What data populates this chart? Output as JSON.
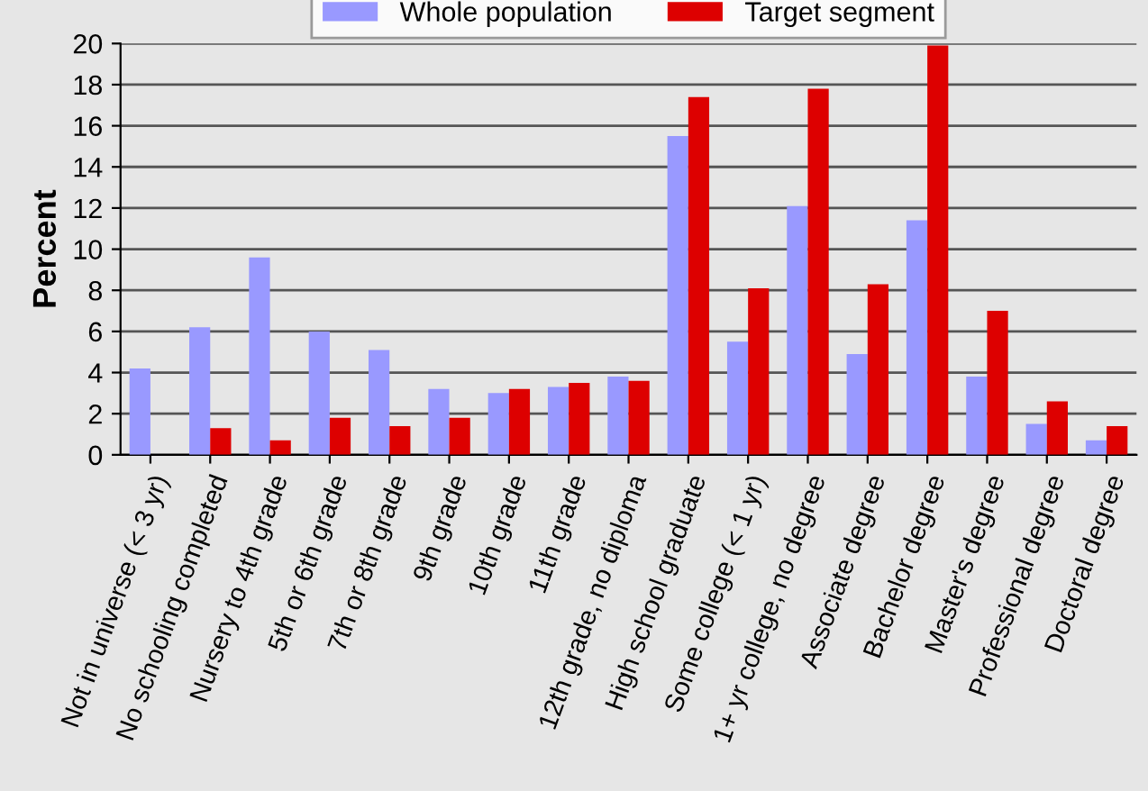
{
  "chart_data": {
    "type": "bar",
    "ylabel": "Percent",
    "categories": [
      "Not in universe (< 3 yr)",
      "No schooling completed",
      "Nursery to 4th grade",
      "5th or 6th grade",
      "7th or 8th grade",
      "9th grade",
      "10th grade",
      "11th grade",
      "12th grade, no diploma",
      "High school graduate",
      "Some college (< 1 yr)",
      "1+ yr college, no degree",
      "Associate degree",
      "Bachelor degree",
      "Master's degree",
      "Professional degree",
      "Doctoral degree"
    ],
    "series": [
      {
        "name": "Whole population",
        "color": "#9999ff",
        "values": [
          4.2,
          6.2,
          9.6,
          6.0,
          5.1,
          3.2,
          3.0,
          3.3,
          3.8,
          15.5,
          5.5,
          12.1,
          4.9,
          11.4,
          3.8,
          1.5,
          0.7
        ]
      },
      {
        "name": "Target segment",
        "color": "#dd0000",
        "values": [
          0,
          1.3,
          0.7,
          1.8,
          1.4,
          1.8,
          3.2,
          3.5,
          3.6,
          17.4,
          8.1,
          17.8,
          8.3,
          19.9,
          7.0,
          2.6,
          1.4
        ]
      }
    ],
    "ylim": [
      0,
      20
    ],
    "yticks": [
      0,
      2,
      4,
      6,
      8,
      10,
      12,
      14,
      16,
      18,
      20
    ],
    "grid": "y",
    "legend": "top"
  }
}
